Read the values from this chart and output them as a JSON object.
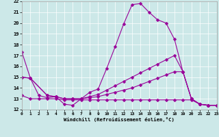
{
  "bg_color": "#cce8e8",
  "line_color": "#990099",
  "xlabel": "Windchill (Refroidissement éolien,°C)",
  "xlim": [
    0,
    23
  ],
  "ylim": [
    12,
    22
  ],
  "yticks": [
    12,
    13,
    14,
    15,
    16,
    17,
    18,
    19,
    20,
    21,
    22
  ],
  "xticks": [
    0,
    1,
    2,
    3,
    4,
    5,
    6,
    7,
    8,
    9,
    10,
    11,
    12,
    13,
    14,
    15,
    16,
    17,
    18,
    19,
    20,
    21,
    22,
    23
  ],
  "line1": {
    "x": [
      0,
      1,
      2,
      3,
      4,
      5,
      6,
      7,
      8,
      9,
      10,
      11,
      12,
      13,
      14,
      15,
      16,
      17,
      18,
      19,
      20,
      21,
      22,
      23
    ],
    "y": [
      17.3,
      14.9,
      13.3,
      13.1,
      13.2,
      12.5,
      12.4,
      13.0,
      13.6,
      13.9,
      15.8,
      17.8,
      19.9,
      21.7,
      21.8,
      21.0,
      20.3,
      20.0,
      18.5,
      15.5,
      13.0,
      12.5,
      12.4,
      12.4
    ]
  },
  "line2": {
    "x": [
      0,
      1,
      3,
      4,
      5,
      6,
      7,
      8,
      9,
      10,
      11,
      12,
      13,
      14,
      15,
      16,
      17,
      18,
      19,
      20,
      21,
      22,
      23
    ],
    "y": [
      15.0,
      14.9,
      13.3,
      13.2,
      13.0,
      13.0,
      13.0,
      13.2,
      13.4,
      13.8,
      14.2,
      14.6,
      15.0,
      15.4,
      15.8,
      16.2,
      16.6,
      17.0,
      15.5,
      13.0,
      12.5,
      12.4,
      12.4
    ]
  },
  "line3": {
    "x": [
      0,
      1,
      3,
      4,
      5,
      6,
      7,
      8,
      9,
      10,
      11,
      12,
      13,
      14,
      15,
      16,
      17,
      18,
      19,
      20,
      21,
      22,
      23
    ],
    "y": [
      15.0,
      14.9,
      13.3,
      13.2,
      13.0,
      13.0,
      13.0,
      13.1,
      13.2,
      13.4,
      13.6,
      13.8,
      14.0,
      14.3,
      14.6,
      14.9,
      15.2,
      15.5,
      15.5,
      13.0,
      12.5,
      12.4,
      12.4
    ]
  },
  "line4": {
    "x": [
      0,
      1,
      2,
      3,
      4,
      5,
      6,
      7,
      8,
      9,
      10,
      11,
      12,
      13,
      14,
      15,
      16,
      17,
      18,
      19,
      20,
      21,
      22,
      23
    ],
    "y": [
      13.3,
      13.0,
      13.0,
      13.0,
      13.0,
      12.9,
      12.9,
      12.9,
      12.9,
      12.9,
      12.9,
      12.9,
      12.9,
      12.9,
      12.9,
      12.9,
      12.9,
      12.9,
      12.9,
      12.9,
      12.9,
      12.5,
      12.4,
      12.4
    ]
  }
}
